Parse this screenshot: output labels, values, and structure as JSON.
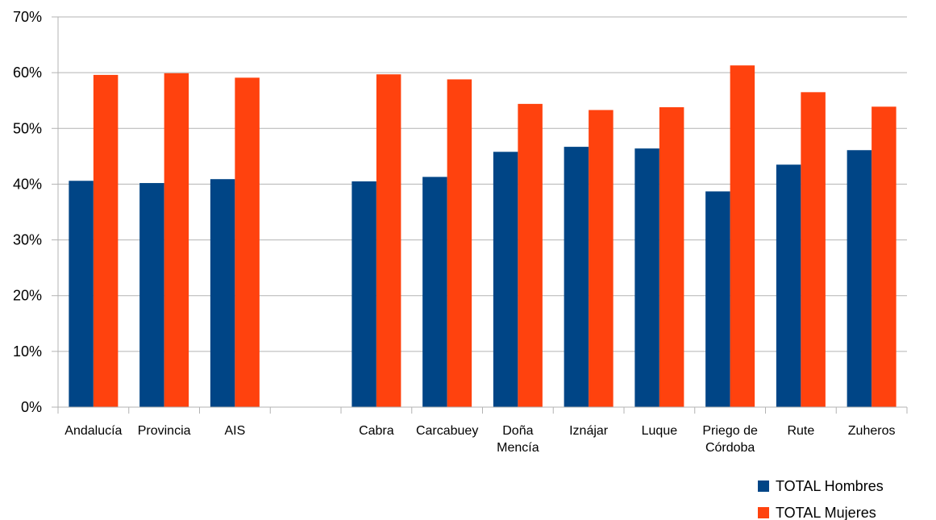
{
  "chart_data": {
    "type": "bar",
    "categories": [
      [
        "Andalucía"
      ],
      [
        "Provincia"
      ],
      [
        "AIS"
      ],
      [
        ""
      ],
      [
        "Cabra"
      ],
      [
        "Carcabuey"
      ],
      [
        "Doña",
        "Mencía"
      ],
      [
        "Iznájar"
      ],
      [
        "Luque"
      ],
      [
        "Priego de",
        "Córdoba"
      ],
      [
        "Rute"
      ],
      [
        "Zuheros"
      ]
    ],
    "series": [
      {
        "name": "TOTAL Hombres",
        "color": "#004586",
        "values": [
          40.6,
          40.2,
          40.9,
          null,
          40.5,
          41.3,
          45.8,
          46.7,
          46.4,
          38.7,
          43.5,
          46.1
        ]
      },
      {
        "name": "TOTAL Mujeres",
        "color": "#ff420e",
        "values": [
          59.6,
          59.9,
          59.1,
          null,
          59.7,
          58.8,
          54.4,
          53.3,
          53.8,
          61.3,
          56.5,
          53.9
        ]
      }
    ],
    "ylim": [
      0,
      70
    ],
    "yticks": [
      "0%",
      "10%",
      "20%",
      "30%",
      "40%",
      "50%",
      "60%",
      "70%"
    ],
    "grid": true,
    "legend_position": "bottom-right"
  }
}
